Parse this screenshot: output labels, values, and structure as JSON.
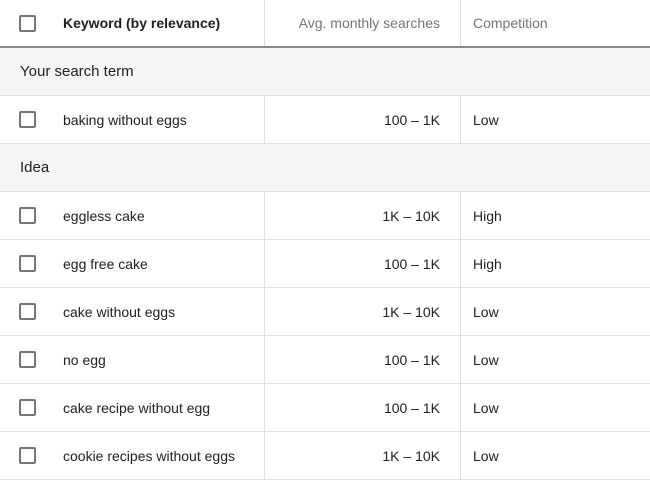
{
  "table": {
    "columns": [
      {
        "label": "Keyword (by relevance)"
      },
      {
        "label": "Avg. monthly searches"
      },
      {
        "label": "Competition"
      }
    ],
    "sections": [
      {
        "label": "Your search term",
        "rows": [
          {
            "keyword": "baking without eggs",
            "searches": "100 – 1K",
            "competition": "Low"
          }
        ]
      },
      {
        "label": "Idea",
        "rows": [
          {
            "keyword": "eggless cake",
            "searches": "1K – 10K",
            "competition": "High"
          },
          {
            "keyword": "egg free cake",
            "searches": "100 – 1K",
            "competition": "High"
          },
          {
            "keyword": "cake without eggs",
            "searches": "1K – 10K",
            "competition": "Low"
          },
          {
            "keyword": "no egg",
            "searches": "100 – 1K",
            "competition": "Low"
          },
          {
            "keyword": "cake recipe without egg",
            "searches": "100 – 1K",
            "competition": "Low"
          },
          {
            "keyword": "cookie recipes without eggs",
            "searches": "1K – 10K",
            "competition": "Low"
          }
        ]
      }
    ]
  },
  "colors": {
    "header_border": "#8a8a8a",
    "row_divider": "#e0e0e0",
    "section_background": "#f5f5f5",
    "text_primary": "#212121",
    "text_muted": "#757575",
    "checkbox_border": "#757575"
  }
}
